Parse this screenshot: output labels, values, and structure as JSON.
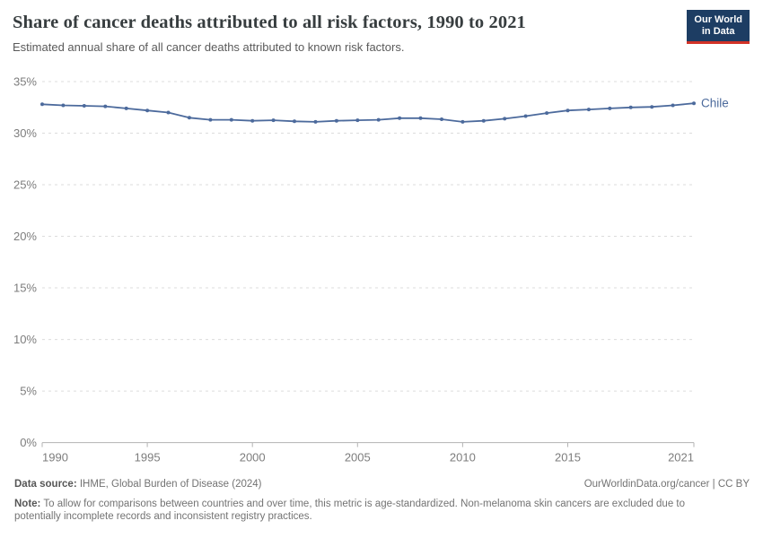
{
  "header": {
    "title": "Share of cancer deaths attributed to all risk factors, 1990 to 2021",
    "subtitle": "Estimated annual share of all cancer deaths attributed to known risk factors.",
    "logo": {
      "line1": "Our World",
      "line2": "in Data",
      "bg_color": "#1d3d63",
      "accent_color": "#d23227"
    }
  },
  "chart_data": {
    "type": "line",
    "title": "Share of cancer deaths attributed to all risk factors, 1990 to 2021",
    "xlabel": "",
    "ylabel": "",
    "xlim": [
      1990,
      2021
    ],
    "ylim": [
      0,
      35
    ],
    "grid": "horizontal-dashed",
    "legend": "end-of-line-label",
    "x": [
      1990,
      1991,
      1992,
      1993,
      1994,
      1995,
      1996,
      1997,
      1998,
      1999,
      2000,
      2001,
      2002,
      2003,
      2004,
      2005,
      2006,
      2007,
      2008,
      2009,
      2010,
      2011,
      2012,
      2013,
      2014,
      2015,
      2016,
      2017,
      2018,
      2019,
      2020,
      2021
    ],
    "series": [
      {
        "name": "Chile",
        "color": "#4c6a9c",
        "values": [
          32.8,
          32.7,
          32.65,
          32.6,
          32.4,
          32.2,
          32.0,
          31.5,
          31.3,
          31.3,
          31.2,
          31.25,
          31.15,
          31.1,
          31.2,
          31.25,
          31.3,
          31.45,
          31.45,
          31.35,
          31.1,
          31.2,
          31.4,
          31.65,
          31.95,
          32.2,
          32.3,
          32.4,
          32.5,
          32.55,
          32.7,
          32.9
        ]
      }
    ],
    "yticks": [
      {
        "value": 0,
        "label": "0%"
      },
      {
        "value": 5,
        "label": "5%"
      },
      {
        "value": 10,
        "label": "10%"
      },
      {
        "value": 15,
        "label": "15%"
      },
      {
        "value": 20,
        "label": "20%"
      },
      {
        "value": 25,
        "label": "25%"
      },
      {
        "value": 30,
        "label": "30%"
      },
      {
        "value": 35,
        "label": "35%"
      }
    ],
    "xticks": [
      {
        "value": 1990,
        "label": "1990"
      },
      {
        "value": 1995,
        "label": "1995"
      },
      {
        "value": 2000,
        "label": "2000"
      },
      {
        "value": 2005,
        "label": "2005"
      },
      {
        "value": 2010,
        "label": "2010"
      },
      {
        "value": 2015,
        "label": "2015"
      },
      {
        "value": 2021,
        "label": "2021"
      }
    ],
    "colors": {
      "grid": "#dcdcdc",
      "axis": "#b3b3b3",
      "tick_text": "#7d7d7d"
    }
  },
  "footer": {
    "data_source_label": "Data source:",
    "data_source_value": " IHME, Global Burden of Disease (2024)",
    "attribution": "OurWorldinData.org/cancer | CC BY",
    "note_label": "Note:",
    "note_value": " To allow for comparisons between countries and over time, this metric is age-standardized. Non-melanoma skin cancers are excluded due to potentially incomplete records and inconsistent registry practices."
  }
}
